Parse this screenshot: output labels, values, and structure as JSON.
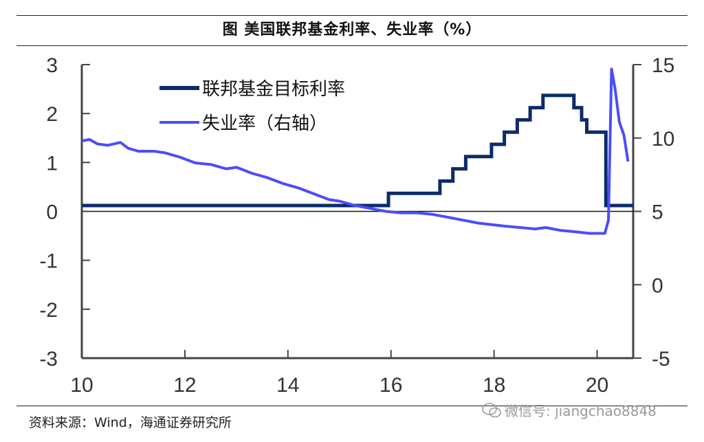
{
  "header": {
    "title": "图  美国联邦基金利率、失业率（%）"
  },
  "footer": {
    "source": "资料来源：Wind，海通证券研究所",
    "watermark": "微信号: jiangchao8848",
    "watermark_icon": "wechat-icon"
  },
  "colors": {
    "fed_funds": "#0d2b6b",
    "unemployment": "#4a4dfa",
    "axis": "#444444"
  },
  "chart_data": {
    "type": "line",
    "title": "美国联邦基金利率、失业率（%）",
    "x_ticks": [
      10,
      12,
      14,
      16,
      18,
      20
    ],
    "xlim": [
      2010,
      2020.7
    ],
    "ylim_left": [
      -3,
      3
    ],
    "ylim_right": [
      -5,
      15
    ],
    "y_ticks_left": [
      3,
      2,
      1,
      0,
      -1,
      -2,
      -3
    ],
    "y_ticks_right": [
      15,
      10,
      5,
      0,
      -5
    ],
    "legend_position": "top-left",
    "grid": false,
    "series": [
      {
        "name": "联邦基金目标利率",
        "axis": "left",
        "step": true,
        "points": [
          [
            2010.0,
            0.12
          ],
          [
            2015.95,
            0.12
          ],
          [
            2015.95,
            0.37
          ],
          [
            2016.95,
            0.37
          ],
          [
            2016.95,
            0.62
          ],
          [
            2017.2,
            0.62
          ],
          [
            2017.2,
            0.87
          ],
          [
            2017.45,
            0.87
          ],
          [
            2017.45,
            1.12
          ],
          [
            2017.95,
            1.12
          ],
          [
            2017.95,
            1.37
          ],
          [
            2018.2,
            1.37
          ],
          [
            2018.2,
            1.62
          ],
          [
            2018.45,
            1.62
          ],
          [
            2018.45,
            1.87
          ],
          [
            2018.7,
            1.87
          ],
          [
            2018.7,
            2.12
          ],
          [
            2018.95,
            2.12
          ],
          [
            2018.95,
            2.37
          ],
          [
            2019.55,
            2.37
          ],
          [
            2019.55,
            2.12
          ],
          [
            2019.7,
            2.12
          ],
          [
            2019.7,
            1.87
          ],
          [
            2019.8,
            1.87
          ],
          [
            2019.8,
            1.62
          ],
          [
            2020.17,
            1.62
          ],
          [
            2020.17,
            0.12
          ],
          [
            2020.7,
            0.12
          ]
        ]
      },
      {
        "name": "失业率（右轴）",
        "axis": "right",
        "points": [
          [
            2010.0,
            9.8
          ],
          [
            2010.15,
            9.9
          ],
          [
            2010.3,
            9.6
          ],
          [
            2010.5,
            9.5
          ],
          [
            2010.75,
            9.7
          ],
          [
            2010.9,
            9.3
          ],
          [
            2011.1,
            9.1
          ],
          [
            2011.4,
            9.1
          ],
          [
            2011.6,
            9.0
          ],
          [
            2011.9,
            8.7
          ],
          [
            2012.2,
            8.3
          ],
          [
            2012.5,
            8.2
          ],
          [
            2012.8,
            7.9
          ],
          [
            2013.0,
            8.0
          ],
          [
            2013.3,
            7.6
          ],
          [
            2013.6,
            7.3
          ],
          [
            2013.9,
            6.9
          ],
          [
            2014.2,
            6.6
          ],
          [
            2014.5,
            6.2
          ],
          [
            2014.8,
            5.8
          ],
          [
            2015.0,
            5.7
          ],
          [
            2015.3,
            5.4
          ],
          [
            2015.6,
            5.2
          ],
          [
            2015.9,
            5.0
          ],
          [
            2016.2,
            4.9
          ],
          [
            2016.5,
            4.9
          ],
          [
            2016.8,
            4.8
          ],
          [
            2017.1,
            4.6
          ],
          [
            2017.4,
            4.4
          ],
          [
            2017.7,
            4.2
          ],
          [
            2017.95,
            4.1
          ],
          [
            2018.2,
            4.0
          ],
          [
            2018.5,
            3.9
          ],
          [
            2018.8,
            3.8
          ],
          [
            2019.0,
            3.9
          ],
          [
            2019.3,
            3.7
          ],
          [
            2019.6,
            3.6
          ],
          [
            2019.85,
            3.5
          ],
          [
            2020.15,
            3.5
          ],
          [
            2020.22,
            4.4
          ],
          [
            2020.28,
            14.7
          ],
          [
            2020.35,
            13.3
          ],
          [
            2020.43,
            11.1
          ],
          [
            2020.52,
            10.2
          ],
          [
            2020.6,
            8.4
          ]
        ]
      }
    ]
  }
}
